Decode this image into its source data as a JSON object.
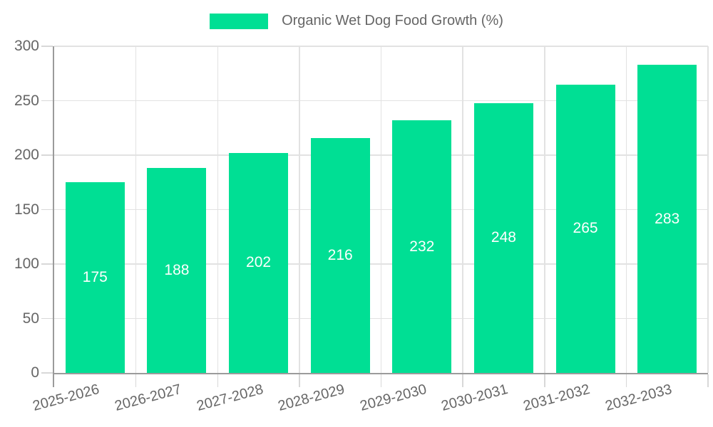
{
  "chart_data": {
    "type": "bar",
    "title": "",
    "legend": {
      "label": "Organic Wet Dog Food Growth (%)",
      "position": "top-center"
    },
    "categories": [
      "2025-2026",
      "2026-2027",
      "2027-2028",
      "2028-2029",
      "2029-2030",
      "2030-2031",
      "2031-2032",
      "2032-2033"
    ],
    "series": [
      {
        "name": "Organic Wet Dog Food Growth (%)",
        "values": [
          175,
          188,
          202,
          216,
          232,
          248,
          265,
          283
        ]
      }
    ],
    "xlabel": "",
    "ylabel": "",
    "ylim": [
      0,
      300
    ],
    "yticks": [
      0,
      50,
      100,
      150,
      200,
      250,
      300
    ],
    "grid": true,
    "value_labels_shown": true,
    "xtick_rotation_deg": -15,
    "colors": {
      "bar": "#00DF94",
      "grid": "#e2e2e2",
      "tick": "#d8d8d8",
      "axis": "#9b9b9b",
      "tick_label": "#666666",
      "value_label": "#ffffff",
      "background": "#ffffff"
    }
  }
}
